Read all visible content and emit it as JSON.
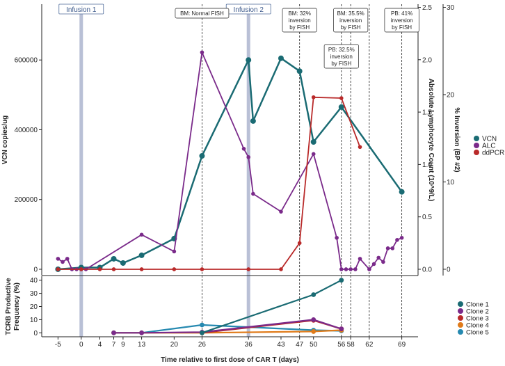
{
  "chart_data": [
    {
      "type": "line",
      "panel": "top",
      "x_ticks": [
        -5,
        0,
        4,
        7,
        9,
        13,
        20,
        26,
        36,
        43,
        47,
        50,
        56,
        58,
        62,
        69
      ],
      "xlim": [
        -8.5,
        72.5
      ],
      "y_left": {
        "label": "VCN copies/ug",
        "ylim": [
          -18000,
          760000
        ],
        "ticks": [
          0,
          200000,
          400000,
          600000
        ]
      },
      "y_right1": {
        "label": "Absolute Lymphocyte Count (10^9/L)",
        "ylim": [
          -0.06,
          2.53
        ],
        "ticks": [
          0.0,
          0.5,
          1.0,
          1.5,
          2.0,
          2.5
        ],
        "tick_labels": [
          "0.0",
          "0.5",
          "1.0",
          "1.5",
          "2.0",
          "2.5"
        ]
      },
      "y_right2": {
        "label": "% Inversion (BP #2)",
        "ylim": [
          -0.72,
          30.36
        ],
        "ticks": [
          0,
          10,
          20,
          30
        ]
      },
      "series": [
        {
          "name": "VCN",
          "color": "#1a6b73",
          "axis": "y_left",
          "x": [
            -5,
            0,
            4,
            7,
            9,
            13,
            20,
            26,
            36,
            37,
            43,
            47,
            50,
            56,
            69
          ],
          "values": [
            0,
            5000,
            5000,
            30000,
            18000,
            40000,
            88000,
            325000,
            600000,
            425000,
            605000,
            568000,
            365000,
            465000,
            222000
          ]
        },
        {
          "name": "ALC",
          "color": "#7a2a8a",
          "axis": "y_right1",
          "x": [
            -5,
            -4,
            -3,
            -2,
            -1,
            0,
            1,
            13,
            20,
            26,
            35,
            36,
            37,
            43,
            50,
            55,
            56,
            57,
            58,
            59,
            60,
            62,
            63,
            64,
            65,
            66,
            67,
            68,
            69
          ],
          "values": [
            0.1,
            0.07,
            0.1,
            0.0,
            0.0,
            0.0,
            0.0,
            0.33,
            0.17,
            2.07,
            1.15,
            1.07,
            0.72,
            0.55,
            1.1,
            0.3,
            0.0,
            0.0,
            0.0,
            0.0,
            0.1,
            0.0,
            0.05,
            0.11,
            0.07,
            0.2,
            0.2,
            0.28,
            0.3
          ]
        },
        {
          "name": "ddPCR",
          "color": "#b92a2a",
          "axis": "y_right2",
          "x": [
            -5,
            0,
            4,
            7,
            13,
            20,
            26,
            36,
            43,
            47,
            50,
            56,
            60
          ],
          "values": [
            0,
            0,
            0,
            0,
            0,
            0,
            0,
            0,
            0,
            3,
            19.7,
            19.6,
            14
          ]
        }
      ],
      "legend": {
        "placement": "right",
        "entries": [
          "VCN",
          "ALC",
          "ddPCR"
        ]
      },
      "infusions": [
        {
          "x": 0,
          "label": "Infusion 1"
        },
        {
          "x": 36,
          "label": "Infusion 2"
        }
      ],
      "annotations": [
        {
          "x": 26,
          "lines": [
            "BM: Normal FISH"
          ]
        },
        {
          "x": 47,
          "lines": [
            "BM: 32%",
            "inversion",
            "by FISH"
          ]
        },
        {
          "x": 58,
          "lines": [
            "BM: 35.5%",
            "inversion",
            "by FISH"
          ]
        },
        {
          "x": 69,
          "lines": [
            "PB: 41%",
            "inversion",
            "by FISH"
          ]
        },
        {
          "x": 56,
          "lines": [
            "PB: 32.5%",
            "inversion",
            "by FISH"
          ]
        }
      ],
      "extra_vlines": [
        62
      ]
    },
    {
      "type": "line",
      "panel": "bottom",
      "xlabel": "Time relative to first dose of CAR T (days)",
      "ylabel": [
        "TCRB Productive",
        "Frequency (%)"
      ],
      "ylim": [
        -3,
        43
      ],
      "y_ticks": [
        0,
        10,
        20,
        30,
        40
      ],
      "series": [
        {
          "name": "Clone 1",
          "color": "#1a6b73",
          "x": [
            26,
            50,
            56
          ],
          "values": [
            0,
            29,
            40
          ]
        },
        {
          "name": "Clone 2",
          "color": "#7a2a8a",
          "x": [
            7,
            13,
            26,
            50,
            56
          ],
          "values": [
            0,
            0,
            0.5,
            10,
            3
          ]
        },
        {
          "name": "Clone 3",
          "color": "#b92a2a",
          "x": [
            26,
            50,
            56
          ],
          "values": [
            0,
            9.5,
            3
          ]
        },
        {
          "name": "Clone 4",
          "color": "#e07b1a",
          "x": [
            7,
            13,
            26,
            50,
            56
          ],
          "values": [
            0,
            0,
            0,
            1,
            2
          ]
        },
        {
          "name": "Clone 5",
          "color": "#2589b0",
          "x": [
            7,
            13,
            26,
            50,
            56
          ],
          "values": [
            0,
            0,
            6,
            2,
            1.5
          ]
        }
      ],
      "legend": {
        "placement": "right",
        "entries": [
          "Clone 1",
          "Clone 2",
          "Clone 3",
          "Clone 4",
          "Clone 5"
        ]
      }
    }
  ]
}
